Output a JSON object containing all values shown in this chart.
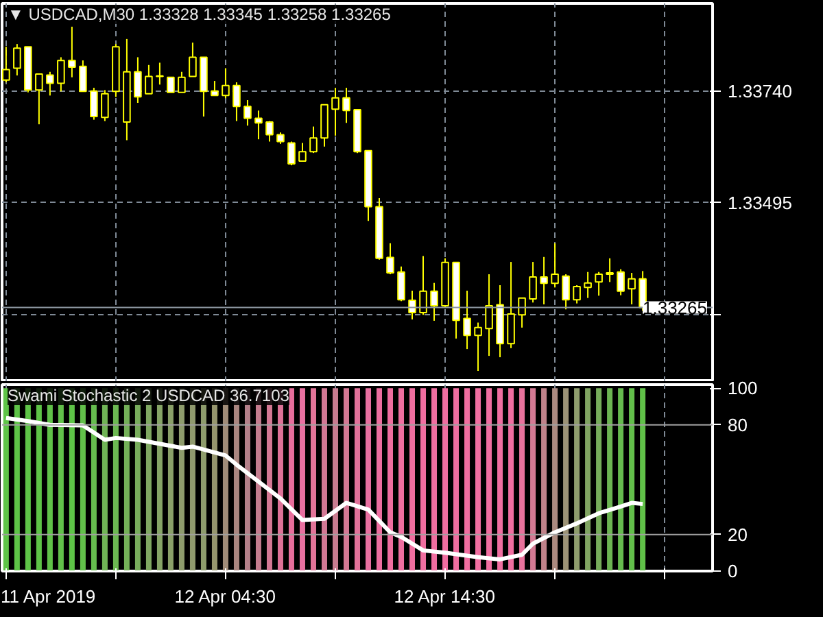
{
  "chart_data": [
    {
      "type": "candlestick",
      "title": "▼ USDCAD,M30  1.33328 1.33345 1.33258 1.33265",
      "color": "#ffff00",
      "x": [
        "2019-04-11T18:30",
        "2019-04-11T19:00",
        "2019-04-11T19:30",
        "2019-04-11T20:00",
        "2019-04-11T20:30",
        "2019-04-11T21:00",
        "2019-04-11T21:30",
        "2019-04-11T22:00",
        "2019-04-11T22:30",
        "2019-04-11T23:00",
        "2019-04-11T23:30",
        "2019-04-12T00:00",
        "2019-04-12T00:30",
        "2019-04-12T01:00",
        "2019-04-12T01:30",
        "2019-04-12T02:00",
        "2019-04-12T02:30",
        "2019-04-12T03:00",
        "2019-04-12T03:30",
        "2019-04-12T04:00",
        "2019-04-12T04:30",
        "2019-04-12T05:00",
        "2019-04-12T05:30",
        "2019-04-12T06:00",
        "2019-04-12T06:30",
        "2019-04-12T07:00",
        "2019-04-12T07:30",
        "2019-04-12T08:00",
        "2019-04-12T08:30",
        "2019-04-12T09:00",
        "2019-04-12T09:30",
        "2019-04-12T10:00",
        "2019-04-12T10:30",
        "2019-04-12T11:00",
        "2019-04-12T11:30",
        "2019-04-12T12:00",
        "2019-04-12T12:30",
        "2019-04-12T13:00",
        "2019-04-12T13:30",
        "2019-04-12T14:00",
        "2019-04-12T14:30",
        "2019-04-12T15:00",
        "2019-04-12T15:30",
        "2019-04-12T16:00",
        "2019-04-12T16:30",
        "2019-04-12T17:00",
        "2019-04-12T17:30",
        "2019-04-12T18:00",
        "2019-04-12T18:30",
        "2019-04-12T19:00",
        "2019-04-12T19:30",
        "2019-04-12T20:00",
        "2019-04-12T20:30",
        "2019-04-12T21:00",
        "2019-04-12T21:30",
        "2019-04-12T22:00",
        "2019-04-12T22:30",
        "2019-04-12T23:00",
        "2019-04-12T23:30"
      ],
      "ohlc": [
        [
          1.33764,
          1.33837,
          1.33759,
          1.33787
        ],
        [
          1.3379,
          1.33843,
          1.33774,
          1.33834
        ],
        [
          1.33837,
          1.33837,
          1.33737,
          1.33742
        ],
        [
          1.33742,
          1.33777,
          1.33667,
          1.33777
        ],
        [
          1.33775,
          1.33782,
          1.3373,
          1.33757
        ],
        [
          1.33757,
          1.33814,
          1.33739,
          1.33807
        ],
        [
          1.33807,
          1.33881,
          1.3377,
          1.33792
        ],
        [
          1.33794,
          1.33807,
          1.33739,
          1.33739
        ],
        [
          1.3374,
          1.33747,
          1.33677,
          1.33684
        ],
        [
          1.33682,
          1.33742,
          1.33674,
          1.33734
        ],
        [
          1.33739,
          1.33843,
          1.33727,
          1.33837
        ],
        [
          1.33672,
          1.33854,
          1.33632,
          1.33782
        ],
        [
          1.33782,
          1.33814,
          1.33714,
          1.33727
        ],
        [
          1.33734,
          1.33797,
          1.33734,
          1.33772
        ],
        [
          1.33772,
          1.33802,
          1.33754,
          1.33773
        ],
        [
          1.3377,
          1.3377,
          1.33737,
          1.33737
        ],
        [
          1.33737,
          1.33782,
          1.33737,
          1.3377
        ],
        [
          1.33772,
          1.33846,
          1.33772,
          1.33814
        ],
        [
          1.33814,
          1.33814,
          1.33684,
          1.33739
        ],
        [
          1.3374,
          1.33762,
          1.3373,
          1.3373
        ],
        [
          1.3373,
          1.3379,
          1.33724,
          1.33752
        ],
        [
          1.33752,
          1.33759,
          1.33674,
          1.33706
        ],
        [
          1.33706,
          1.3372,
          1.33664,
          1.3368
        ],
        [
          1.3368,
          1.33697,
          1.33634,
          1.3367
        ],
        [
          1.33672,
          1.33674,
          1.33629,
          1.33644
        ],
        [
          1.33644,
          1.33649,
          1.33624,
          1.33629
        ],
        [
          1.33626,
          1.33629,
          1.33577,
          1.3358
        ],
        [
          1.33586,
          1.33626,
          1.33585,
          1.33607
        ],
        [
          1.33607,
          1.33662,
          1.33604,
          1.33637
        ],
        [
          1.33637,
          1.3371,
          1.33618,
          1.3371
        ],
        [
          1.337,
          1.33747,
          1.33642,
          1.33725
        ],
        [
          1.33725,
          1.33747,
          1.3367,
          1.33697
        ],
        [
          1.33699,
          1.33699,
          1.33604,
          1.33607
        ],
        [
          1.33609,
          1.33609,
          1.33455,
          1.33486
        ],
        [
          1.33486,
          1.33505,
          1.3337,
          1.33373
        ],
        [
          1.33375,
          1.33406,
          1.33338,
          1.33341
        ],
        [
          1.33343,
          1.33355,
          1.33279,
          1.33282
        ],
        [
          1.33281,
          1.33302,
          1.33239,
          1.33254
        ],
        [
          1.33254,
          1.33378,
          1.33249,
          1.33301
        ],
        [
          1.33301,
          1.33319,
          1.33236,
          1.33269
        ],
        [
          1.33269,
          1.33373,
          1.33264,
          1.33364
        ],
        [
          1.33364,
          1.33364,
          1.33197,
          1.33237
        ],
        [
          1.33241,
          1.33302,
          1.33174,
          1.33204
        ],
        [
          1.33204,
          1.33232,
          1.33126,
          1.33221
        ],
        [
          1.33219,
          1.33338,
          1.33159,
          1.33269
        ],
        [
          1.33271,
          1.33314,
          1.33156,
          1.33186
        ],
        [
          1.33186,
          1.33365,
          1.33176,
          1.33251
        ],
        [
          1.33249,
          1.33286,
          1.33221,
          1.33286
        ],
        [
          1.33284,
          1.33365,
          1.33276,
          1.33332
        ],
        [
          1.33332,
          1.33376,
          1.33272,
          1.33318
        ],
        [
          1.33318,
          1.33406,
          1.33309,
          1.33338
        ],
        [
          1.33334,
          1.33338,
          1.33261,
          1.33282
        ],
        [
          1.33282,
          1.33314,
          1.33274,
          1.33311
        ],
        [
          1.33309,
          1.33343,
          1.33286,
          1.33319
        ],
        [
          1.33321,
          1.33343,
          1.33291,
          1.33338
        ],
        [
          1.33338,
          1.33373,
          1.33321,
          1.33341
        ],
        [
          1.33343,
          1.33349,
          1.33292,
          1.33301
        ],
        [
          1.33306,
          1.33341,
          1.33272,
          1.33328
        ],
        [
          1.33328,
          1.33345,
          1.33258,
          1.33265
        ]
      ],
      "xlim": [
        "2019-04-11T18:19",
        "2019-04-13T02:41"
      ],
      "xticks": [
        {
          "value": "2019-04-11T18:30",
          "label": null
        },
        {
          "value": "2019-04-11T23:30",
          "label": null
        },
        {
          "value": "2019-04-12T04:30",
          "label": null
        },
        {
          "value": "2019-04-12T09:30",
          "label": null
        },
        {
          "value": "2019-04-12T14:30",
          "label": null
        },
        {
          "value": "2019-04-12T19:30",
          "label": null
        },
        {
          "value": "2019-04-13T00:30",
          "label": null
        }
      ],
      "ylim": [
        1.33102,
        1.33932
      ],
      "yticks": [
        {
          "value": 1.3374,
          "label": "1.33740"
        },
        {
          "value": 1.33495,
          "label": "1.33495"
        },
        {
          "value": 1.3325,
          "label": null
        }
      ],
      "ref_lines": [
        {
          "axis": "y",
          "value": 1.33265,
          "label": "1.33265",
          "color": "#8c96a0"
        }
      ],
      "grid": true,
      "tick_labels": "y"
    },
    {
      "type": "bar",
      "title": "Swami Stochastic 2 USDCAD 36.7103",
      "x": [
        "2019-04-11T18:30",
        "2019-04-11T19:00",
        "2019-04-11T19:30",
        "2019-04-11T20:00",
        "2019-04-11T20:30",
        "2019-04-11T21:00",
        "2019-04-11T21:30",
        "2019-04-11T22:00",
        "2019-04-11T22:30",
        "2019-04-11T23:00",
        "2019-04-11T23:30",
        "2019-04-12T00:00",
        "2019-04-12T00:30",
        "2019-04-12T01:00",
        "2019-04-12T01:30",
        "2019-04-12T02:00",
        "2019-04-12T02:30",
        "2019-04-12T03:00",
        "2019-04-12T03:30",
        "2019-04-12T04:00",
        "2019-04-12T04:30",
        "2019-04-12T05:00",
        "2019-04-12T05:30",
        "2019-04-12T06:00",
        "2019-04-12T06:30",
        "2019-04-12T07:00",
        "2019-04-12T07:30",
        "2019-04-12T08:00",
        "2019-04-12T08:30",
        "2019-04-12T09:00",
        "2019-04-12T09:30",
        "2019-04-12T10:00",
        "2019-04-12T10:30",
        "2019-04-12T11:00",
        "2019-04-12T11:30",
        "2019-04-12T12:00",
        "2019-04-12T12:30",
        "2019-04-12T13:00",
        "2019-04-12T13:30",
        "2019-04-12T14:00",
        "2019-04-12T14:30",
        "2019-04-12T15:00",
        "2019-04-12T15:30",
        "2019-04-12T16:00",
        "2019-04-12T16:30",
        "2019-04-12T17:00",
        "2019-04-12T17:30",
        "2019-04-12T18:00",
        "2019-04-12T18:30",
        "2019-04-12T19:00",
        "2019-04-12T19:30",
        "2019-04-12T20:00",
        "2019-04-12T20:30",
        "2019-04-12T21:00",
        "2019-04-12T21:30",
        "2019-04-12T22:00",
        "2019-04-12T22:30",
        "2019-04-12T23:00",
        "2019-04-12T23:30"
      ],
      "series": [
        {
          "type": "bar",
          "values": [
            100,
            100,
            100,
            100,
            100,
            100,
            100,
            100,
            100,
            100,
            100,
            100,
            100,
            100,
            100,
            100,
            100,
            100,
            100,
            100,
            100,
            100,
            100,
            100,
            100,
            100,
            100,
            100,
            100,
            100,
            100,
            100,
            100,
            100,
            100,
            100,
            100,
            100,
            100,
            100,
            100,
            100,
            100,
            100,
            100,
            100,
            100,
            100,
            100,
            100,
            100,
            100,
            100,
            100,
            100,
            100,
            100,
            100,
            100
          ],
          "colors": [
            "#5ec447",
            "#5ec447",
            "#5ec447",
            "#5ec447",
            "#60c248",
            "#62c04a",
            "#5ec447",
            "#62c04a",
            "#66bc4e",
            "#70b456",
            "#6cb852",
            "#74b058",
            "#78ac5c",
            "#80a862",
            "#86a466",
            "#8aa068",
            "#8e9c6c",
            "#909a6e",
            "#8e9c6c",
            "#96966e",
            "#a08c78",
            "#aa8680",
            "#b4808a",
            "#c47c8e",
            "#d47894",
            "#de7298",
            "#e86e9c",
            "#e870a0",
            "#e27498",
            "#d27894",
            "#c87c90",
            "#d47894",
            "#e2729a",
            "#e870a0",
            "#ee6ea0",
            "#f06ea0",
            "#f06ea0",
            "#f06ea0",
            "#f06ea0",
            "#f06ea0",
            "#f06ea0",
            "#f06ea0",
            "#f06ea0",
            "#f06ea0",
            "#f06ea0",
            "#f06ea0",
            "#f06ea0",
            "#e8729c",
            "#d47a94",
            "#c0828a",
            "#ac8a80",
            "#9c9276",
            "#8e9c6c",
            "#80a462",
            "#76ac5a",
            "#6cb452",
            "#66ba4e",
            "#62be4a",
            "#60c048"
          ]
        },
        {
          "type": "line",
          "color": "#ffffff",
          "x": [
            "2019-04-11T18:30",
            "2019-04-11T19:30",
            "2019-04-11T20:30",
            "2019-04-11T22:00",
            "2019-04-11T23:00",
            "2019-04-11T23:30",
            "2019-04-12T00:30",
            "2019-04-12T02:30",
            "2019-04-12T03:00",
            "2019-04-12T04:30",
            "2019-04-12T05:00",
            "2019-04-12T07:00",
            "2019-04-12T08:00",
            "2019-04-12T09:00",
            "2019-04-12T10:00",
            "2019-04-12T11:00",
            "2019-04-12T12:00",
            "2019-04-12T12:30",
            "2019-04-12T13:00",
            "2019-04-12T13:30",
            "2019-04-12T14:30",
            "2019-04-12T16:00",
            "2019-04-12T17:00",
            "2019-04-12T18:00",
            "2019-04-12T18:30",
            "2019-04-12T19:30",
            "2019-04-12T20:30",
            "2019-04-12T21:30",
            "2019-04-12T22:30",
            "2019-04-12T23:00",
            "2019-04-12T23:30"
          ],
          "values": [
            83.7,
            82,
            80,
            79.7,
            71.8,
            72.8,
            71.8,
            67.4,
            68.1,
            63.2,
            58.2,
            39.7,
            27.9,
            28.6,
            37.3,
            33.6,
            21.2,
            18.7,
            15,
            11.3,
            10,
            7.6,
            6.4,
            8.9,
            15,
            21.2,
            26.1,
            31.6,
            35.3,
            37.3,
            36.7
          ]
        }
      ],
      "xlim": [
        "2019-04-11T18:19",
        "2019-04-13T02:41"
      ],
      "xticks": [
        {
          "value": "2019-04-11T18:30",
          "label": "11 Apr 2019"
        },
        {
          "value": "2019-04-11T23:30",
          "label": null
        },
        {
          "value": "2019-04-12T04:30",
          "label": "12 Apr 04:30"
        },
        {
          "value": "2019-04-12T09:30",
          "label": null
        },
        {
          "value": "2019-04-12T14:30",
          "label": "12 Apr 14:30"
        },
        {
          "value": "2019-04-12T19:30",
          "label": null
        },
        {
          "value": "2019-04-13T00:30",
          "label": null
        }
      ],
      "ylim": [
        0,
        102
      ],
      "yticks": [
        0,
        20,
        80,
        100
      ],
      "ref_lines": [
        {
          "axis": "y",
          "value": 80,
          "color": "#a0a0a0"
        },
        {
          "axis": "y",
          "value": 20,
          "color": "#a0a0a0"
        }
      ],
      "grid": "x"
    }
  ]
}
